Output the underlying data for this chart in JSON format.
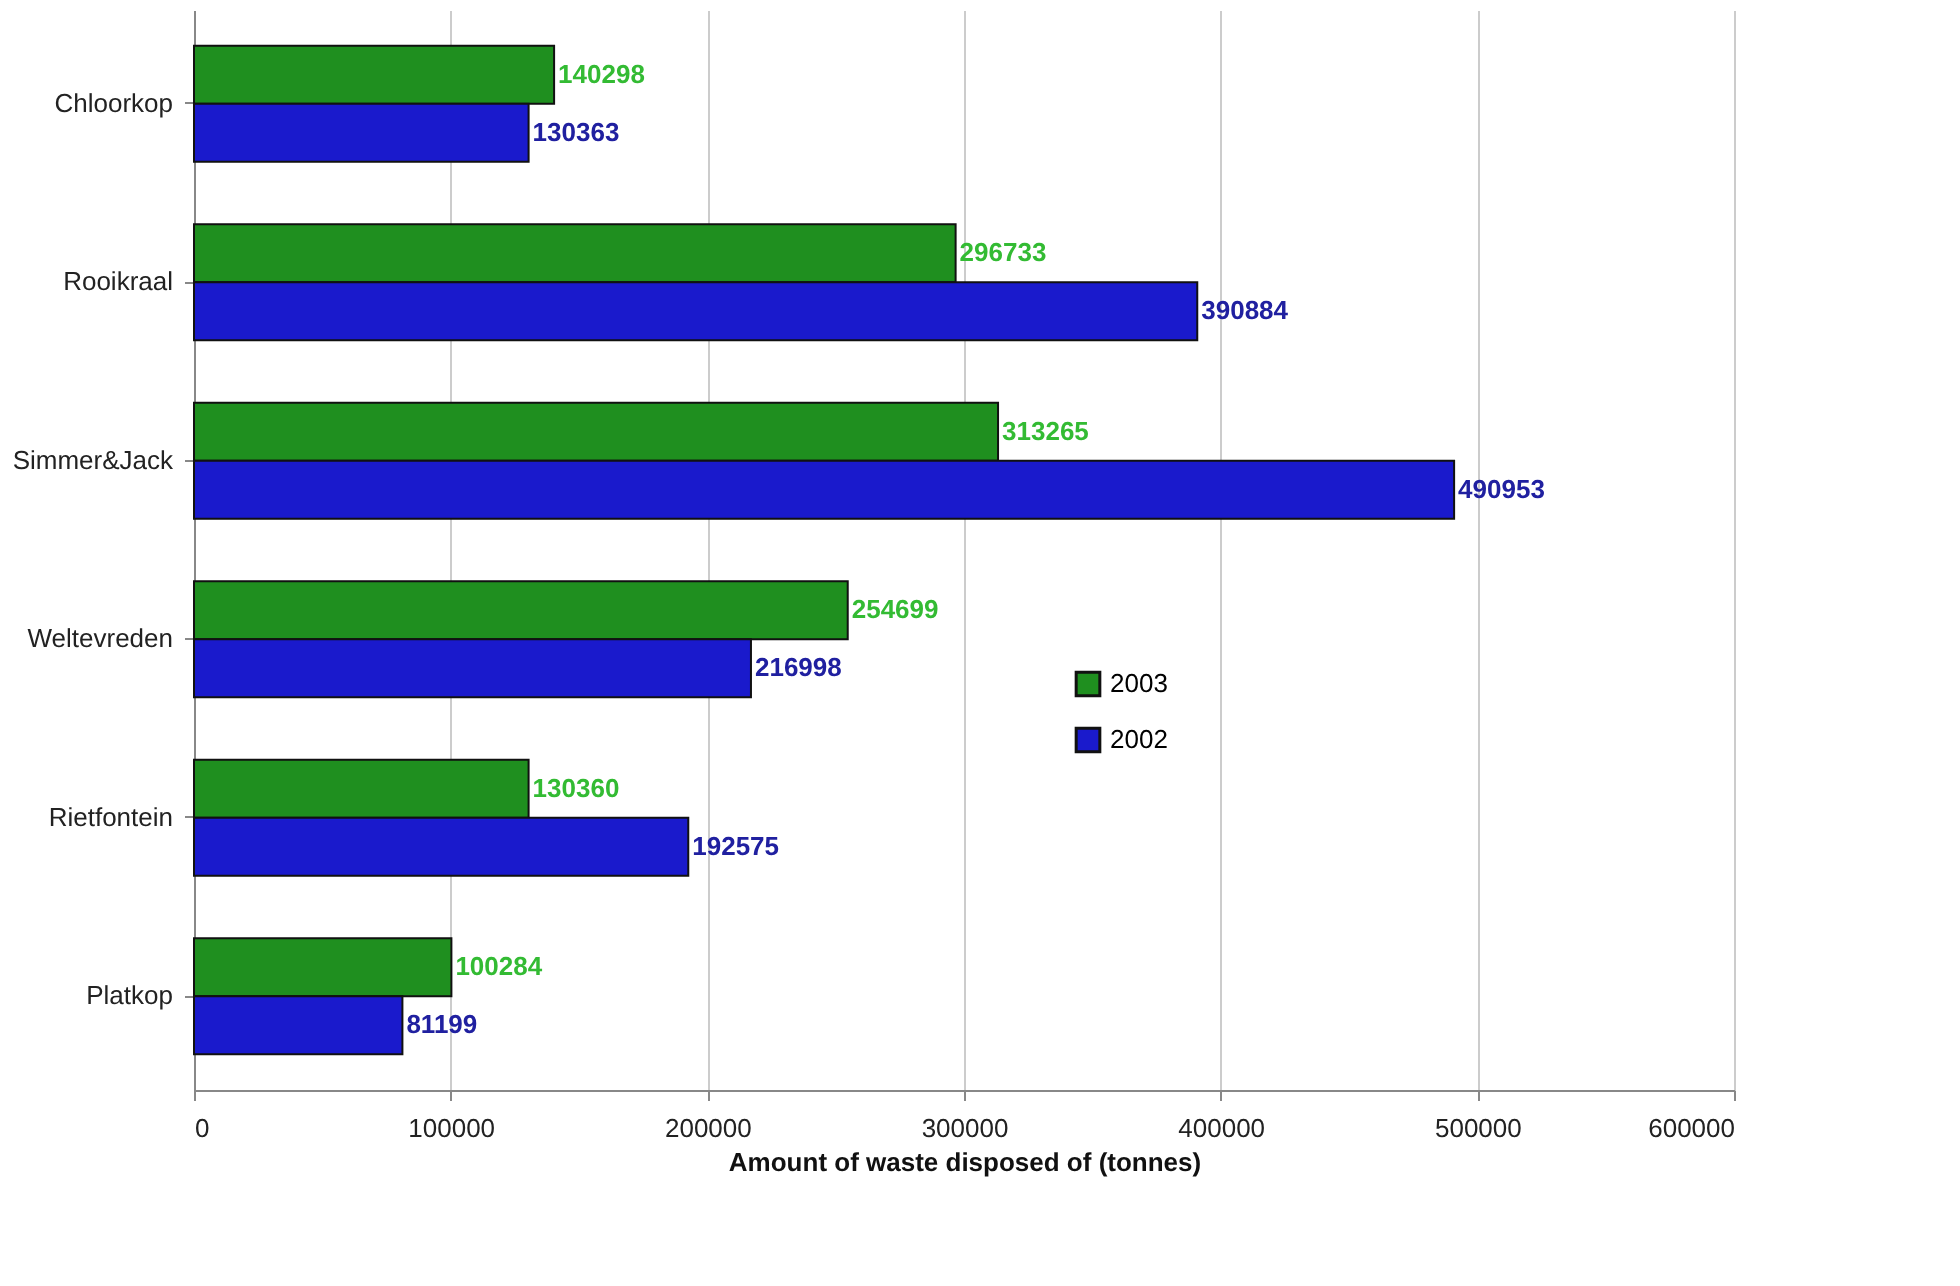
{
  "chart_data": {
    "type": "bar",
    "orientation": "horizontal",
    "xlabel": "Amount of waste disposed of (tonnes)",
    "categories": [
      "Chloorkop",
      "Rooikraal",
      "Simmer&Jack",
      "Weltevreden",
      "Rietfontein",
      "Platkop"
    ],
    "series": [
      {
        "name": "2003",
        "color": "#1f8f1f",
        "values": [
          140298,
          296733,
          313265,
          254699,
          130360,
          100284
        ]
      },
      {
        "name": "2002",
        "color": "#1a1acc",
        "values": [
          130363,
          390884,
          490953,
          216998,
          192575,
          81199
        ]
      }
    ],
    "xlim": [
      0,
      600000
    ],
    "xticks": [
      0,
      100000,
      200000,
      300000,
      400000,
      500000,
      600000
    ],
    "grid": "x",
    "legend": "right",
    "data_labels": true
  }
}
